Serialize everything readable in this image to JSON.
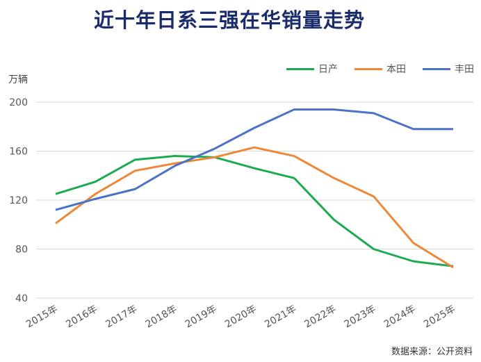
{
  "title": "近十年日系三强在华销量走势",
  "unit_label": "万辆",
  "source_note": "数据来源：公开资料",
  "chart_data": {
    "type": "line",
    "title": "近十年日系三强在华销量走势",
    "xlabel": "",
    "ylabel": "万辆",
    "ylim": [
      40,
      200
    ],
    "yticks": [
      40,
      80,
      120,
      160,
      200
    ],
    "ytick_labels": [
      "40",
      "80",
      "120",
      "160",
      "200"
    ],
    "grid": true,
    "legend_position": "top-right",
    "categories": [
      "2015年",
      "2016年",
      "2017年",
      "2018年",
      "2019年",
      "2020年",
      "2021年",
      "2022年",
      "2023年",
      "2024年",
      "2025年"
    ],
    "series": [
      {
        "name": "日产",
        "color": "#1aab4f",
        "values": [
          125,
          135,
          153,
          156,
          155,
          146,
          138,
          104,
          80,
          70,
          66
        ]
      },
      {
        "name": "本田",
        "color": "#ed8838",
        "values": [
          101,
          125,
          144,
          150,
          155,
          163,
          156,
          138,
          123,
          85,
          65
        ]
      },
      {
        "name": "丰田",
        "color": "#4a72c6",
        "values": [
          112,
          121,
          129,
          148,
          162,
          179,
          194,
          194,
          191,
          178,
          178
        ]
      }
    ]
  }
}
